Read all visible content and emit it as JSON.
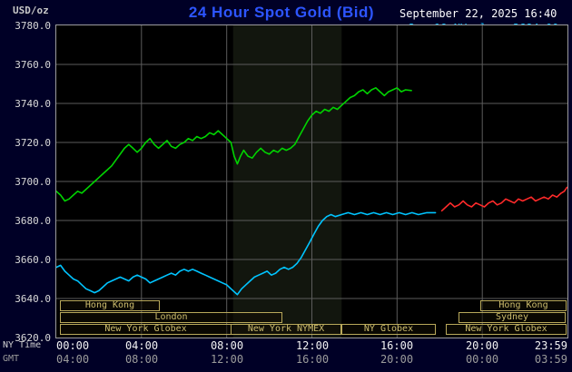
{
  "header": {
    "unit_label": "USD/oz",
    "title": "24 Hour Spot Gold (Bid)",
    "datetime": "September 22, 2025 16:40",
    "watermark": "www.kitco.com",
    "legend_marker": "-",
    "legend": [
      {
        "label": "Sep 19 NY close 3684.00",
        "color": "#00c4ff"
      },
      {
        "label": "Sep 21 Sunday",
        "color": "#ff2a2a"
      },
      {
        "label": "Sep 22 Last 3746.60",
        "color": "#00d400"
      }
    ]
  },
  "axes": {
    "ny_time_label": "NY Time",
    "gmt_label": "GMT",
    "tick_hours": [
      0,
      4,
      8,
      12,
      16,
      20,
      23.983
    ],
    "ny_ticks": [
      "00:00",
      "04:00",
      "08:00",
      "12:00",
      "16:00",
      "20:00",
      "23:59"
    ],
    "gmt_ticks": [
      "04:00",
      "08:00",
      "12:00",
      "16:00",
      "20:00",
      "00:00",
      "03:59"
    ],
    "y_ticks": [
      "3780.0",
      "3760.0",
      "3740.0",
      "3720.0",
      "3700.0",
      "3680.0",
      "3660.0",
      "3640.0",
      "3620.0"
    ]
  },
  "sessions": {
    "rows": [
      [
        {
          "label": "Hong Kong",
          "start": 0.15,
          "end": 4.85
        },
        {
          "label": "Hong Kong",
          "start": 19.9,
          "end": 23.95
        }
      ],
      [
        {
          "label": "London",
          "start": 0.15,
          "end": 10.6
        },
        {
          "label": "Sydney",
          "start": 18.9,
          "end": 23.95
        }
      ],
      [
        {
          "label": "New York Globex",
          "start": 0.15,
          "end": 8.2
        },
        {
          "label": "New York NYMEX",
          "start": 8.2,
          "end": 13.4
        },
        {
          "label": "NY Globex",
          "start": 13.4,
          "end": 17.85
        },
        {
          "label": "New York Globex",
          "start": 18.3,
          "end": 23.95
        }
      ]
    ]
  },
  "colors": {
    "background": "#000026",
    "plot_background": "#000000",
    "frame": "#9c9c9c",
    "grid": "#5c5c5c",
    "title_blue": "#2d55ff",
    "session_border": "#b9a95b",
    "session_text": "#cdbd6e",
    "band": "#12160e",
    "axis_text": "#d9d9d9"
  },
  "chart_data": {
    "type": "line",
    "title": "24 Hour Spot Gold (Bid)",
    "xlabel": "NY Time (hours 00:00-23:59)",
    "ylabel": "USD/oz",
    "xlim": [
      0,
      24
    ],
    "ylim": [
      3620,
      3780
    ],
    "legend_position": "top-right",
    "grid": {
      "x_interval": 4,
      "y_interval": 20,
      "color": "#5c5c5c"
    },
    "highlight_band": {
      "x0": 8.3,
      "x1": 13.4,
      "color": "#12160e"
    },
    "series": [
      {
        "id": "sep19-ny-close",
        "name": "Sep 19 NY close 3684.00",
        "color": "#00c4ff",
        "points": [
          [
            0,
            3656
          ],
          [
            0.2,
            3657
          ],
          [
            0.4,
            3654
          ],
          [
            0.6,
            3652
          ],
          [
            0.8,
            3650
          ],
          [
            1,
            3649
          ],
          [
            1.2,
            3647
          ],
          [
            1.4,
            3645
          ],
          [
            1.6,
            3644
          ],
          [
            1.8,
            3643
          ],
          [
            2,
            3644
          ],
          [
            2.2,
            3646
          ],
          [
            2.4,
            3648
          ],
          [
            2.6,
            3649
          ],
          [
            2.8,
            3650
          ],
          [
            3,
            3651
          ],
          [
            3.2,
            3650
          ],
          [
            3.4,
            3649
          ],
          [
            3.6,
            3651
          ],
          [
            3.8,
            3652
          ],
          [
            4,
            3651
          ],
          [
            4.2,
            3650
          ],
          [
            4.4,
            3648
          ],
          [
            4.6,
            3649
          ],
          [
            4.8,
            3650
          ],
          [
            5,
            3651
          ],
          [
            5.2,
            3652
          ],
          [
            5.4,
            3653
          ],
          [
            5.6,
            3652
          ],
          [
            5.8,
            3654
          ],
          [
            6,
            3655
          ],
          [
            6.2,
            3654
          ],
          [
            6.4,
            3655
          ],
          [
            6.6,
            3654
          ],
          [
            6.8,
            3653
          ],
          [
            7,
            3652
          ],
          [
            7.2,
            3651
          ],
          [
            7.4,
            3650
          ],
          [
            7.6,
            3649
          ],
          [
            7.8,
            3648
          ],
          [
            8,
            3647
          ],
          [
            8.2,
            3645
          ],
          [
            8.4,
            3643
          ],
          [
            8.5,
            3642
          ],
          [
            8.7,
            3645
          ],
          [
            8.9,
            3647
          ],
          [
            9.1,
            3649
          ],
          [
            9.3,
            3651
          ],
          [
            9.5,
            3652
          ],
          [
            9.7,
            3653
          ],
          [
            9.9,
            3654
          ],
          [
            10.1,
            3652
          ],
          [
            10.3,
            3653
          ],
          [
            10.5,
            3655
          ],
          [
            10.7,
            3656
          ],
          [
            10.9,
            3655
          ],
          [
            11.1,
            3656
          ],
          [
            11.3,
            3658
          ],
          [
            11.5,
            3661
          ],
          [
            11.7,
            3665
          ],
          [
            11.9,
            3669
          ],
          [
            12.1,
            3673
          ],
          [
            12.3,
            3677
          ],
          [
            12.5,
            3680
          ],
          [
            12.7,
            3682
          ],
          [
            12.9,
            3683
          ],
          [
            13.1,
            3682
          ],
          [
            13.4,
            3683
          ],
          [
            13.7,
            3684
          ],
          [
            14,
            3683
          ],
          [
            14.3,
            3684
          ],
          [
            14.6,
            3683
          ],
          [
            14.9,
            3684
          ],
          [
            15.2,
            3683
          ],
          [
            15.5,
            3684
          ],
          [
            15.8,
            3683
          ],
          [
            16.1,
            3684
          ],
          [
            16.4,
            3683
          ],
          [
            16.7,
            3684
          ],
          [
            17,
            3683
          ],
          [
            17.4,
            3684
          ],
          [
            17.8,
            3684
          ]
        ]
      },
      {
        "id": "sep21-sunday",
        "name": "Sep 21 Sunday",
        "color": "#ff2a2a",
        "points": [
          [
            18.1,
            3685
          ],
          [
            18.3,
            3687
          ],
          [
            18.5,
            3689
          ],
          [
            18.7,
            3687
          ],
          [
            18.9,
            3688
          ],
          [
            19.1,
            3690
          ],
          [
            19.3,
            3688
          ],
          [
            19.5,
            3687
          ],
          [
            19.7,
            3689
          ],
          [
            19.9,
            3688
          ],
          [
            20.1,
            3687
          ],
          [
            20.3,
            3689
          ],
          [
            20.5,
            3690
          ],
          [
            20.7,
            3688
          ],
          [
            20.9,
            3689
          ],
          [
            21.1,
            3691
          ],
          [
            21.3,
            3690
          ],
          [
            21.5,
            3689
          ],
          [
            21.7,
            3691
          ],
          [
            21.9,
            3690
          ],
          [
            22.1,
            3691
          ],
          [
            22.3,
            3692
          ],
          [
            22.5,
            3690
          ],
          [
            22.7,
            3691
          ],
          [
            22.9,
            3692
          ],
          [
            23.1,
            3691
          ],
          [
            23.3,
            3693
          ],
          [
            23.5,
            3692
          ],
          [
            23.7,
            3694
          ],
          [
            23.85,
            3695
          ],
          [
            23.98,
            3697
          ]
        ]
      },
      {
        "id": "sep22-last",
        "name": "Sep 22 Last 3746.60",
        "color": "#00d400",
        "points": [
          [
            0,
            3695
          ],
          [
            0.2,
            3693
          ],
          [
            0.4,
            3690
          ],
          [
            0.6,
            3691
          ],
          [
            0.8,
            3693
          ],
          [
            1,
            3695
          ],
          [
            1.2,
            3694
          ],
          [
            1.4,
            3696
          ],
          [
            1.6,
            3698
          ],
          [
            1.8,
            3700
          ],
          [
            2,
            3702
          ],
          [
            2.2,
            3704
          ],
          [
            2.4,
            3706
          ],
          [
            2.6,
            3708
          ],
          [
            2.8,
            3711
          ],
          [
            3,
            3714
          ],
          [
            3.2,
            3717
          ],
          [
            3.4,
            3719
          ],
          [
            3.6,
            3717
          ],
          [
            3.8,
            3715
          ],
          [
            4,
            3717
          ],
          [
            4.2,
            3720
          ],
          [
            4.4,
            3722
          ],
          [
            4.6,
            3719
          ],
          [
            4.8,
            3717
          ],
          [
            5,
            3719
          ],
          [
            5.2,
            3721
          ],
          [
            5.4,
            3718
          ],
          [
            5.6,
            3717
          ],
          [
            5.8,
            3719
          ],
          [
            6,
            3720
          ],
          [
            6.2,
            3722
          ],
          [
            6.4,
            3721
          ],
          [
            6.6,
            3723
          ],
          [
            6.8,
            3722
          ],
          [
            7,
            3723
          ],
          [
            7.2,
            3725
          ],
          [
            7.4,
            3724
          ],
          [
            7.6,
            3726
          ],
          [
            7.8,
            3724
          ],
          [
            8,
            3722
          ],
          [
            8.2,
            3720
          ],
          [
            8.35,
            3713
          ],
          [
            8.5,
            3709
          ],
          [
            8.65,
            3713
          ],
          [
            8.8,
            3716
          ],
          [
            9,
            3713
          ],
          [
            9.2,
            3712
          ],
          [
            9.4,
            3715
          ],
          [
            9.6,
            3717
          ],
          [
            9.8,
            3715
          ],
          [
            10,
            3714
          ],
          [
            10.2,
            3716
          ],
          [
            10.4,
            3715
          ],
          [
            10.6,
            3717
          ],
          [
            10.8,
            3716
          ],
          [
            11,
            3717
          ],
          [
            11.2,
            3719
          ],
          [
            11.4,
            3723
          ],
          [
            11.6,
            3727
          ],
          [
            11.8,
            3731
          ],
          [
            12,
            3734
          ],
          [
            12.2,
            3736
          ],
          [
            12.4,
            3735
          ],
          [
            12.6,
            3737
          ],
          [
            12.8,
            3736
          ],
          [
            13,
            3738
          ],
          [
            13.2,
            3737
          ],
          [
            13.4,
            3739
          ],
          [
            13.6,
            3741
          ],
          [
            13.8,
            3743
          ],
          [
            14,
            3744
          ],
          [
            14.2,
            3746
          ],
          [
            14.4,
            3747
          ],
          [
            14.6,
            3745
          ],
          [
            14.8,
            3747
          ],
          [
            15,
            3748
          ],
          [
            15.2,
            3746
          ],
          [
            15.4,
            3744
          ],
          [
            15.6,
            3746
          ],
          [
            15.8,
            3747
          ],
          [
            16,
            3748
          ],
          [
            16.2,
            3746
          ],
          [
            16.4,
            3747
          ],
          [
            16.67,
            3746.6
          ]
        ]
      }
    ]
  }
}
